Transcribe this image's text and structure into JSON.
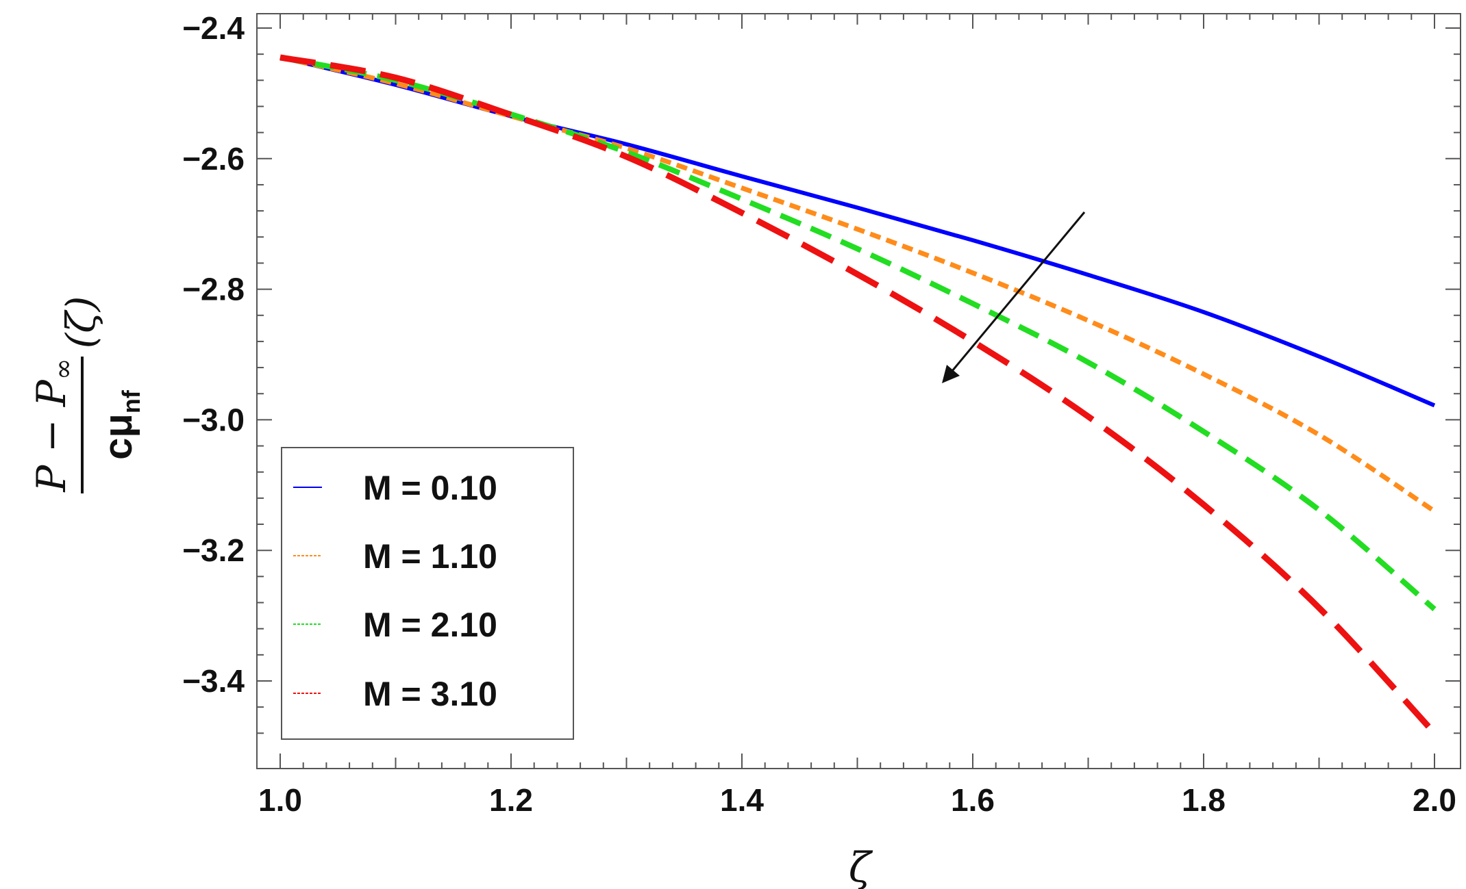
{
  "chart_data": {
    "type": "line",
    "xlabel": "ζ",
    "ylabel": {
      "numerator": "P − P",
      "numerator_sub": "∞",
      "argument": "(ζ)",
      "denominator": "cμ",
      "denominator_sub": "nf"
    },
    "xlim": [
      1.0,
      2.0
    ],
    "ylim": [
      -3.52,
      -2.38
    ],
    "xticks": [
      1.0,
      1.2,
      1.4,
      1.6,
      1.8,
      2.0
    ],
    "xtick_labels": [
      "1.0",
      "1.2",
      "1.4",
      "1.6",
      "1.8",
      "2.0"
    ],
    "yticks": [
      -2.4,
      -2.6,
      -2.8,
      -3.0,
      -3.2,
      -3.4
    ],
    "ytick_labels": [
      "−2.4",
      "−2.6",
      "−2.8",
      "−3.0",
      "−3.2",
      "−3.4"
    ],
    "grid": false,
    "legend_position": "lower-left",
    "annotation": "arrow pointing toward increasing M",
    "x": [
      1.0,
      1.1,
      1.2,
      1.3,
      1.4,
      1.5,
      1.6,
      1.7,
      1.8,
      1.9,
      2.0
    ],
    "series": [
      {
        "name": "M = 0.10",
        "color": "#0000ff",
        "style": "solid",
        "values": [
          -2.445,
          -2.487,
          -2.535,
          -2.578,
          -2.627,
          -2.675,
          -2.725,
          -2.778,
          -2.835,
          -2.903,
          -2.978
        ]
      },
      {
        "name": "M = 1.10",
        "color": "#ff8c1a",
        "style": "dotted",
        "values": [
          -2.445,
          -2.485,
          -2.535,
          -2.584,
          -2.645,
          -2.708,
          -2.775,
          -2.848,
          -2.93,
          -3.023,
          -3.14
        ]
      },
      {
        "name": "M = 2.10",
        "color": "#22dd22",
        "style": "dashed",
        "values": [
          -2.445,
          -2.48,
          -2.532,
          -2.59,
          -2.662,
          -2.738,
          -2.822,
          -2.912,
          -3.018,
          -3.138,
          -3.29
        ]
      },
      {
        "name": "M = 3.10",
        "color": "#ee1111",
        "style": "longdash",
        "values": [
          -2.445,
          -2.476,
          -2.533,
          -2.597,
          -2.683,
          -2.777,
          -2.88,
          -2.995,
          -3.13,
          -3.288,
          -3.48
        ]
      }
    ]
  }
}
